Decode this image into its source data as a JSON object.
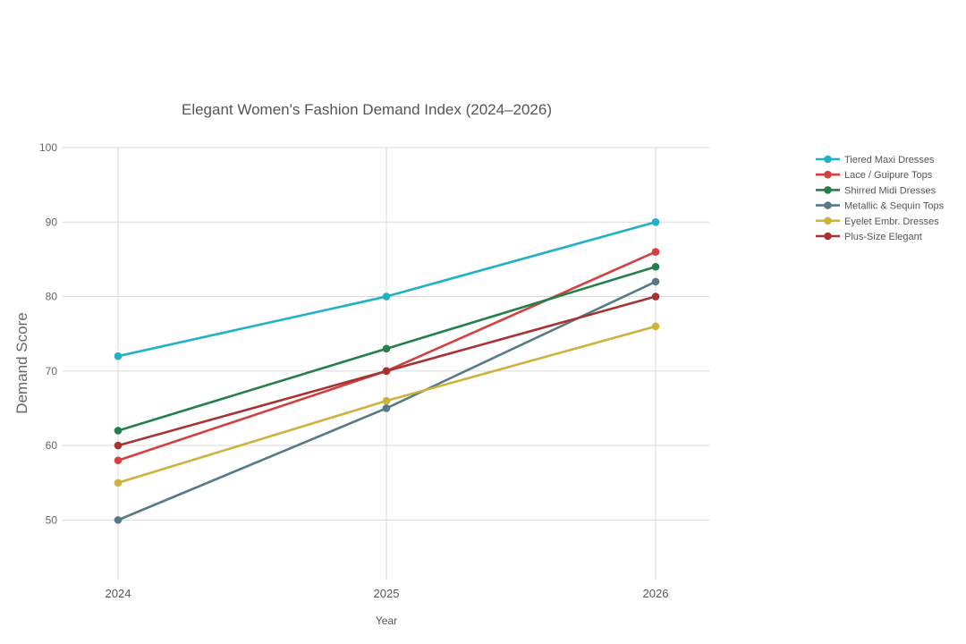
{
  "chart_data": {
    "type": "line",
    "title": "Elegant Women's Fashion Demand Index (2024–2026)",
    "xlabel": "Year",
    "ylabel": "Demand Score",
    "x": [
      "2024",
      "2025",
      "2026"
    ],
    "y_ticks": [
      50,
      60,
      70,
      80,
      90,
      100
    ],
    "ylim": [
      42,
      100
    ],
    "grid": true,
    "legend_position": "right",
    "series": [
      {
        "name": "Tiered Maxi Dresses",
        "color": "#1fb1c7",
        "values": [
          72,
          80,
          90
        ]
      },
      {
        "name": "Lace / Guipure Tops",
        "color": "#d43f3f",
        "values": [
          58,
          70,
          86
        ]
      },
      {
        "name": "Shirred Midi Dresses",
        "color": "#23804a",
        "values": [
          62,
          73,
          84
        ]
      },
      {
        "name": "Metallic & Sequin Tops",
        "color": "#557a87",
        "values": [
          50,
          65,
          82
        ]
      },
      {
        "name": "Eyelet Embr. Dresses",
        "color": "#cdb23c",
        "values": [
          55,
          66,
          76
        ]
      },
      {
        "name": "Plus-Size Elegant",
        "color": "#a83232",
        "values": [
          60,
          70,
          80
        ]
      }
    ]
  }
}
